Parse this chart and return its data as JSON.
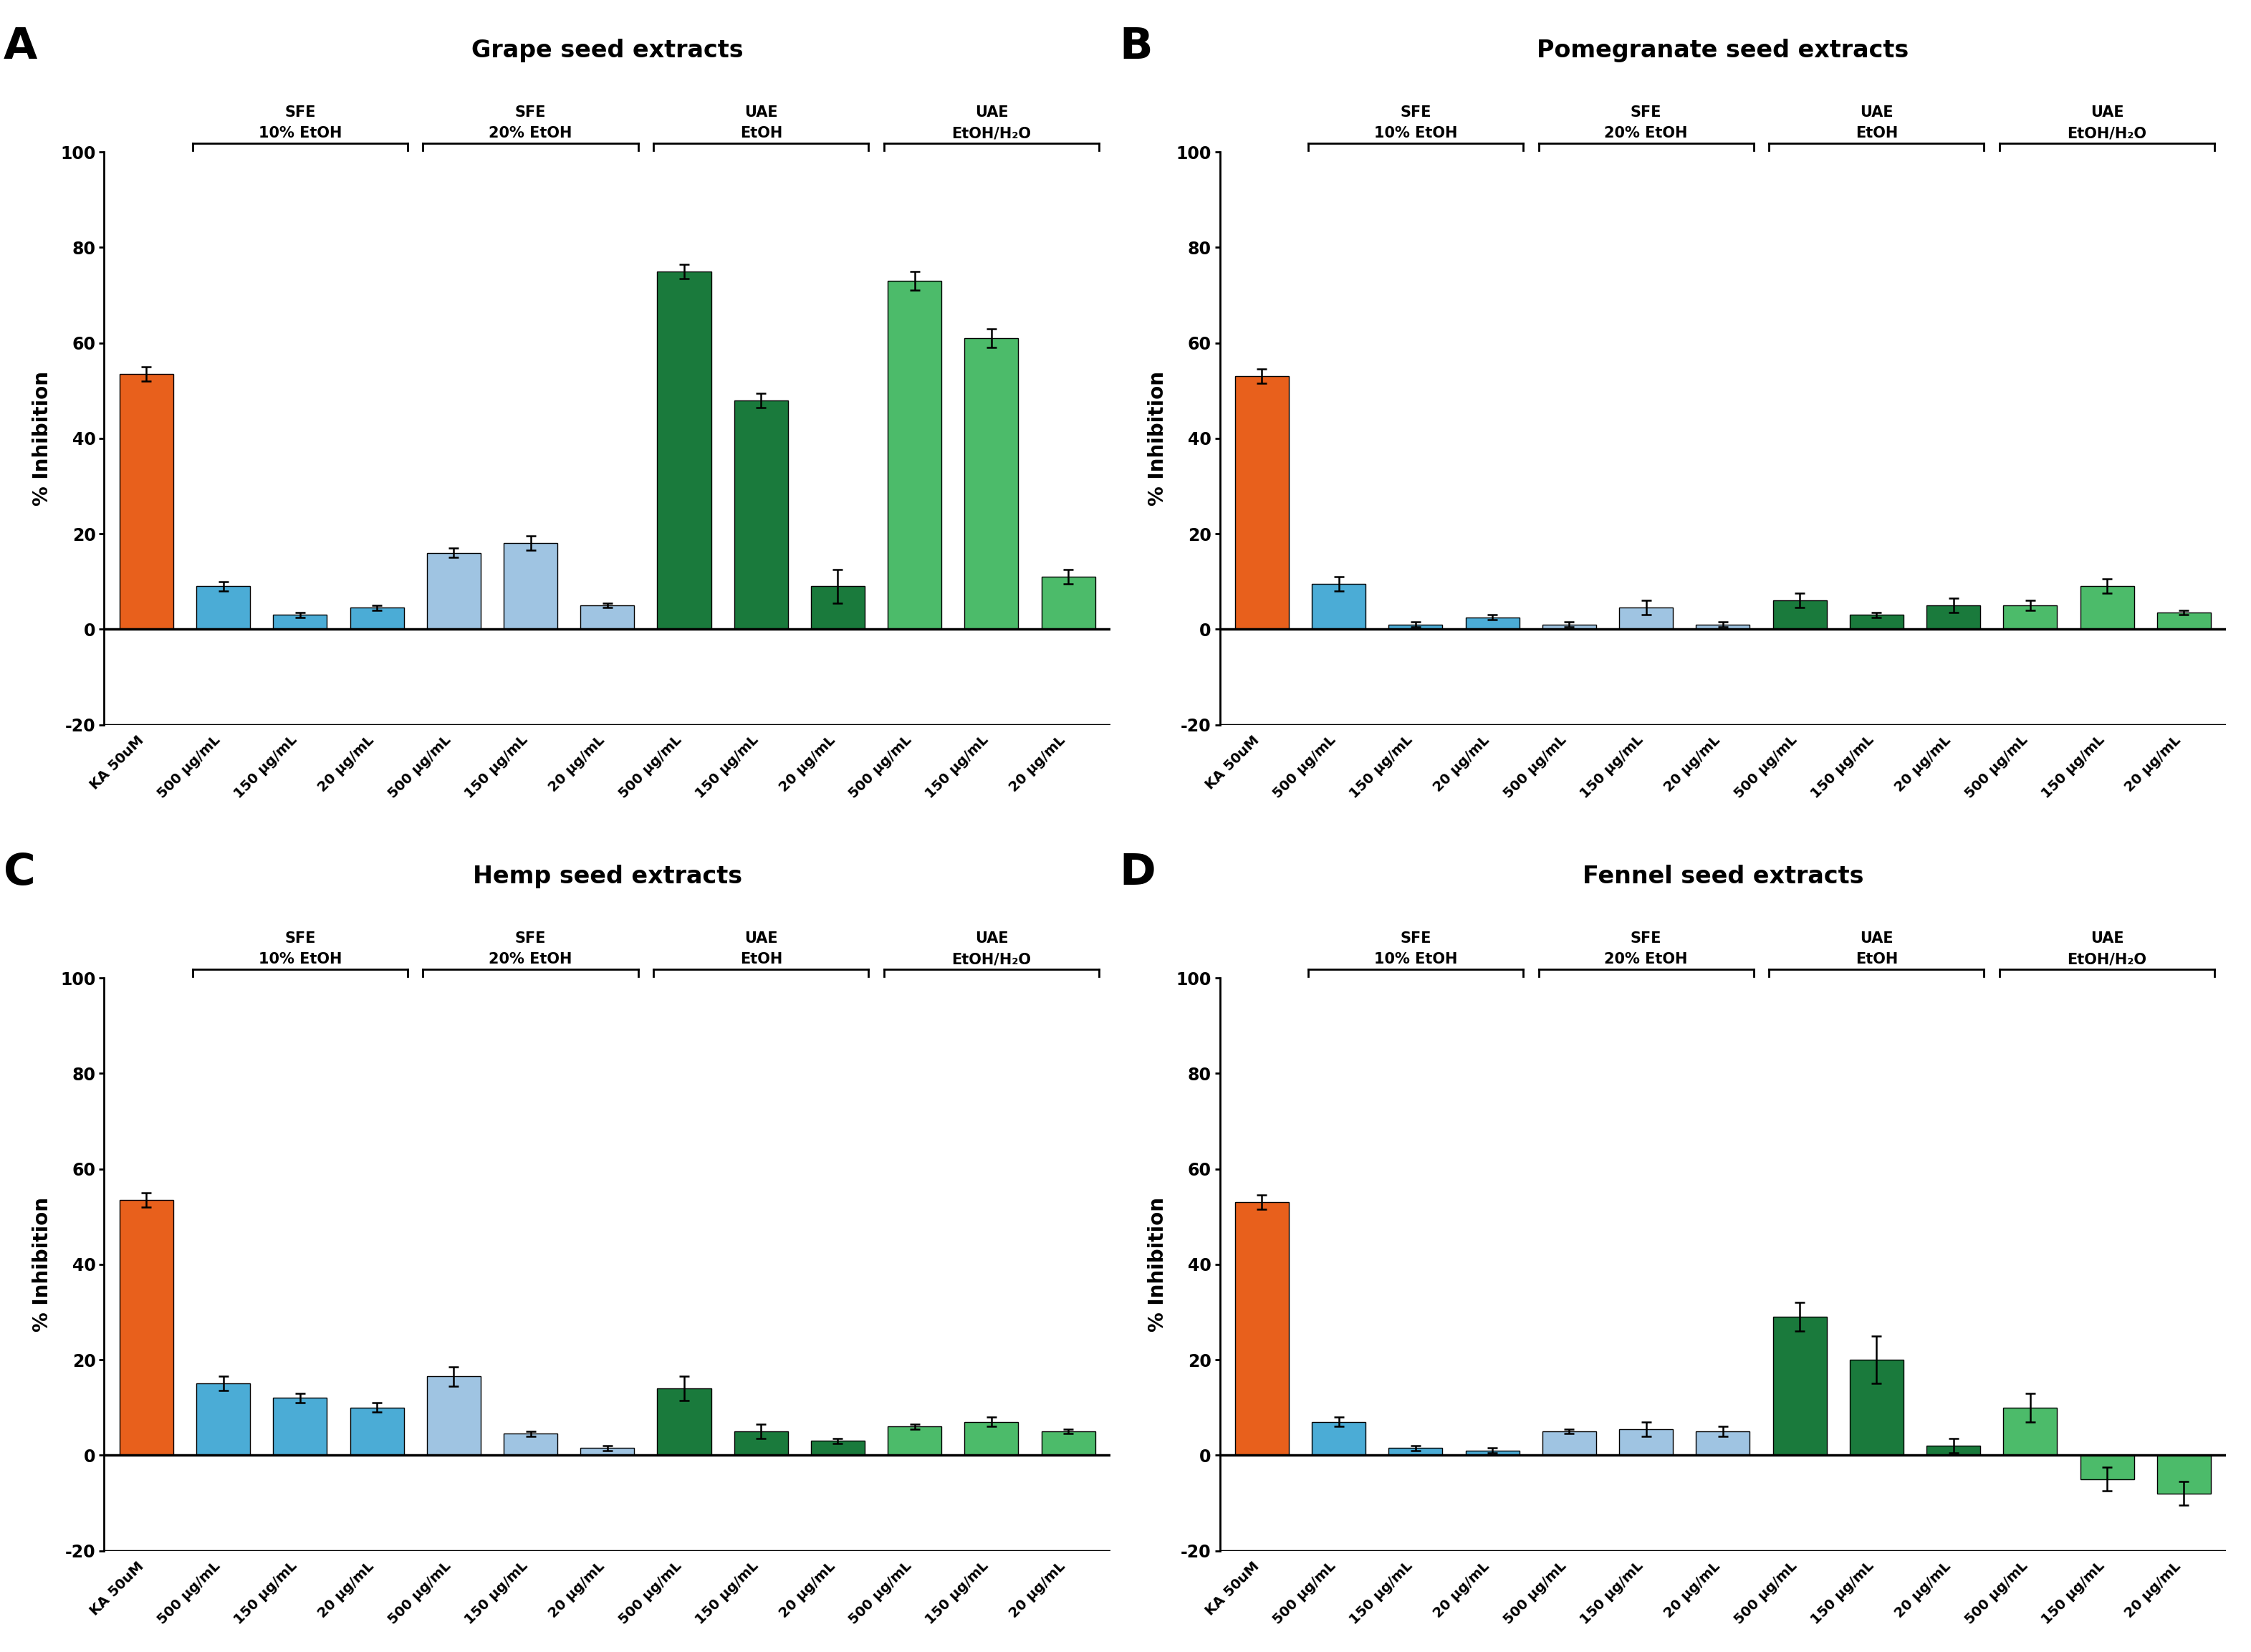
{
  "panels": [
    {
      "label": "A",
      "title": "Grape seed extracts",
      "bars": [
        53.5,
        9.0,
        3.0,
        4.5,
        16.0,
        18.0,
        5.0,
        75.0,
        48.0,
        9.0,
        73.0,
        61.0,
        11.0
      ],
      "errors": [
        1.5,
        1.0,
        0.5,
        0.5,
        1.0,
        1.5,
        0.5,
        1.5,
        1.5,
        3.5,
        2.0,
        2.0,
        1.5
      ],
      "colors": [
        "#E8601C",
        "#4BACD6",
        "#4BACD6",
        "#4BACD6",
        "#9FC4E2",
        "#9FC4E2",
        "#9FC4E2",
        "#1A7A3C",
        "#1A7A3C",
        "#1A7A3C",
        "#4CBB6A",
        "#4CBB6A",
        "#4CBB6A"
      ]
    },
    {
      "label": "B",
      "title": "Pomegranate seed extracts",
      "bars": [
        53.0,
        9.5,
        1.0,
        2.5,
        1.0,
        4.5,
        1.0,
        6.0,
        3.0,
        5.0,
        5.0,
        9.0,
        3.5
      ],
      "errors": [
        1.5,
        1.5,
        0.5,
        0.5,
        0.5,
        1.5,
        0.5,
        1.5,
        0.5,
        1.5,
        1.0,
        1.5,
        0.5
      ],
      "colors": [
        "#E8601C",
        "#4BACD6",
        "#4BACD6",
        "#4BACD6",
        "#9FC4E2",
        "#9FC4E2",
        "#9FC4E2",
        "#1A7A3C",
        "#1A7A3C",
        "#1A7A3C",
        "#4CBB6A",
        "#4CBB6A",
        "#4CBB6A"
      ]
    },
    {
      "label": "C",
      "title": "Hemp seed extracts",
      "bars": [
        53.5,
        15.0,
        12.0,
        10.0,
        16.5,
        4.5,
        1.5,
        14.0,
        5.0,
        3.0,
        6.0,
        7.0,
        5.0
      ],
      "errors": [
        1.5,
        1.5,
        1.0,
        1.0,
        2.0,
        0.5,
        0.5,
        2.5,
        1.5,
        0.5,
        0.5,
        1.0,
        0.5
      ],
      "colors": [
        "#E8601C",
        "#4BACD6",
        "#4BACD6",
        "#4BACD6",
        "#9FC4E2",
        "#9FC4E2",
        "#9FC4E2",
        "#1A7A3C",
        "#1A7A3C",
        "#1A7A3C",
        "#4CBB6A",
        "#4CBB6A",
        "#4CBB6A"
      ]
    },
    {
      "label": "D",
      "title": "Fennel seed extracts",
      "bars": [
        53.0,
        7.0,
        1.5,
        1.0,
        5.0,
        5.5,
        5.0,
        29.0,
        20.0,
        2.0,
        10.0,
        -5.0,
        -8.0
      ],
      "errors": [
        1.5,
        1.0,
        0.5,
        0.5,
        0.5,
        1.5,
        1.0,
        3.0,
        5.0,
        1.5,
        3.0,
        2.5,
        2.5
      ],
      "colors": [
        "#E8601C",
        "#4BACD6",
        "#4BACD6",
        "#4BACD6",
        "#9FC4E2",
        "#9FC4E2",
        "#9FC4E2",
        "#1A7A3C",
        "#1A7A3C",
        "#1A7A3C",
        "#4CBB6A",
        "#4CBB6A",
        "#4CBB6A"
      ]
    }
  ],
  "xlabels": [
    "KA 50uM",
    "500 μg/mL",
    "150 μg/mL",
    "20 μg/mL",
    "500 μg/mL",
    "150 μg/mL",
    "20 μg/mL",
    "500 μg/mL",
    "150 μg/mL",
    "20 μg/mL",
    "500 μg/mL",
    "150 μg/mL",
    "20 μg/mL"
  ],
  "ylabel": "% Inhibition",
  "ylim": [
    -20,
    100
  ],
  "yticks": [
    -20,
    0,
    20,
    40,
    60,
    80,
    100
  ],
  "group_labels_line1": [
    "SFE",
    "SFE",
    "UAE",
    "UAE"
  ],
  "group_labels_line2": [
    "10% EtOH",
    "20% EtOH",
    "EtOH",
    "EtOH/H₂O"
  ],
  "group_spans": [
    [
      1,
      3
    ],
    [
      4,
      6
    ],
    [
      7,
      9
    ],
    [
      10,
      12
    ]
  ],
  "background_color": "#ffffff",
  "bar_width": 0.7,
  "xlim": [
    -0.55,
    12.55
  ]
}
